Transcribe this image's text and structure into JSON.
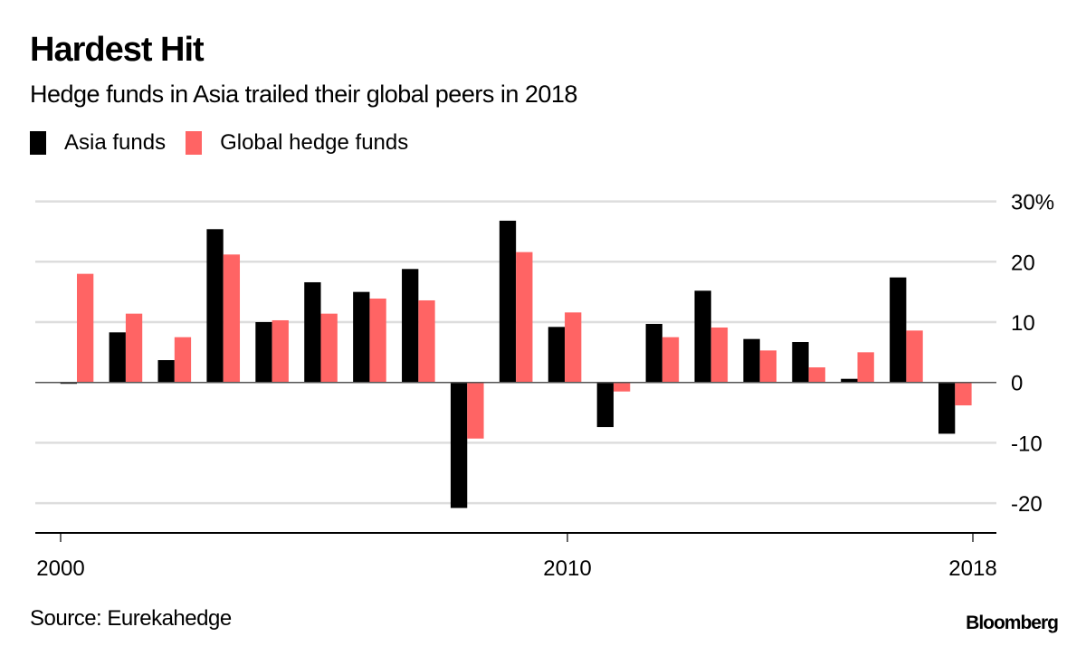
{
  "header": {
    "title": "Hardest Hit",
    "subtitle": "Hedge funds in Asia trailed their global peers in 2018"
  },
  "legend": [
    {
      "label": "Asia funds",
      "color": "#000000"
    },
    {
      "label": "Global hedge funds",
      "color": "#ff6464"
    }
  ],
  "footer": {
    "source": "Source: Eurekahedge",
    "brand": "Bloomberg"
  },
  "chart_data": {
    "type": "bar",
    "title": "Hardest Hit",
    "subtitle": "Hedge funds in Asia trailed their global peers in 2018",
    "xlabel": "",
    "ylabel": "",
    "categories": [
      "2000",
      "2001",
      "2002",
      "2003",
      "2004",
      "2005",
      "2006",
      "2007",
      "2008",
      "2009",
      "2010",
      "2011",
      "2012",
      "2013",
      "2014",
      "2015",
      "2016",
      "2017",
      "2018"
    ],
    "series": [
      {
        "name": "Asia funds",
        "color": "#000000",
        "values": [
          -0.1,
          8.3,
          3.7,
          25.4,
          10.0,
          16.6,
          15.0,
          18.8,
          -20.8,
          26.8,
          9.2,
          -7.4,
          9.7,
          15.2,
          7.2,
          6.7,
          0.6,
          17.4,
          -8.5
        ]
      },
      {
        "name": "Global hedge funds",
        "color": "#ff6464",
        "values": [
          18.0,
          11.4,
          7.5,
          21.2,
          10.3,
          11.4,
          13.9,
          13.6,
          -9.3,
          21.6,
          11.6,
          -1.5,
          7.5,
          9.1,
          5.3,
          2.5,
          5.0,
          8.6,
          -3.8
        ]
      }
    ],
    "ylim": [
      -25,
      30
    ],
    "yticks": [
      30,
      20,
      10,
      0,
      -10,
      -20
    ],
    "ytick_labels": [
      "30%",
      "20",
      "10",
      "0",
      "-10",
      "-20"
    ],
    "xticks": [
      "2000",
      "2010",
      "2018"
    ],
    "grid": true,
    "y_axis_side": "right",
    "legend_position": "top-left"
  }
}
